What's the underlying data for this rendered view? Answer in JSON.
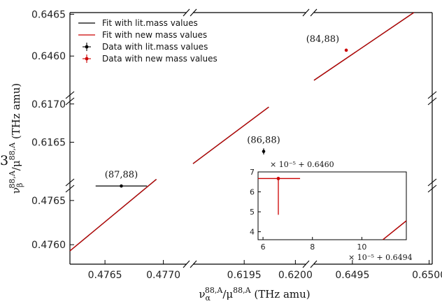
{
  "chart_data": {
    "type": "scatter",
    "xlabel": "ν_α^{88,A}/μ^{88,A} (THz amu)",
    "xlabel_parts": {
      "base": "ν",
      "sub": "α",
      "sup1": "88,A",
      "mid": "/μ",
      "sup2": "88,A",
      "unit": " (THz amu)"
    },
    "ylabel": "ν_β^{88,A}/μ^{88,A} (THz amu)",
    "ylabel_parts": {
      "base": "ν",
      "sub": "β",
      "sup1": "88,A",
      "mid": "/μ",
      "sup2": "88,A",
      "unit": " (THz amu)"
    },
    "stray_label": "3",
    "broken_axes": true,
    "x_segments": [
      {
        "range": [
          0.4762,
          0.4772
        ],
        "ticks": [
          "0.4765",
          "0.4770"
        ],
        "tick_values": [
          0.4765,
          0.477
        ]
      },
      {
        "range": [
          0.619,
          0.6201
        ],
        "ticks": [
          "0.6195",
          "0.6200"
        ],
        "tick_values": [
          0.6195,
          0.62
        ]
      },
      {
        "range": [
          0.64925,
          0.65002
        ],
        "ticks": [
          "0.6495",
          "0.6500"
        ],
        "tick_values": [
          0.6495,
          0.65
        ]
      }
    ],
    "y_segments": [
      {
        "range": [
          0.47593,
          0.47676
        ],
        "ticks": [
          "0.4760",
          "0.4765"
        ],
        "tick_values": [
          0.476,
          0.4765
        ]
      },
      {
        "range": [
          0.61603,
          0.61708
        ],
        "ticks": [
          "0.6165",
          "0.6170"
        ],
        "tick_values": [
          0.6165,
          0.617
        ]
      },
      {
        "range": [
          0.6455,
          0.64652
        ],
        "ticks": [
          "0.6460",
          "0.6465"
        ],
        "tick_values": [
          0.646,
          0.6465
        ]
      }
    ],
    "legend": {
      "placement": "upper-left",
      "entries": [
        {
          "label": "Fit with lit.mass values",
          "color": "#000000",
          "kind": "line"
        },
        {
          "label": "Fit with new mass values",
          "color": "#cc0000",
          "kind": "line"
        },
        {
          "label": "Data with lit.mass values",
          "color": "#000000",
          "kind": "point"
        },
        {
          "label": "Data with new mass values",
          "color": "#cc0000",
          "kind": "point"
        }
      ]
    },
    "series": [
      {
        "kind": "fit_line",
        "pieces": [
          {
            "x": [
              0.4762,
              0.47694
            ],
            "y": [
              0.47593,
              0.47674
            ]
          },
          {
            "x": [
              0.619,
              0.61974
            ],
            "y": [
              0.61622,
              0.61696
            ]
          },
          {
            "x": [
              0.64925,
              0.6499
            ],
            "y": [
              0.64571,
              0.64652
            ]
          }
        ]
      }
    ],
    "points": [
      {
        "label": "(87,88)",
        "x": 0.47664,
        "y": 0.476664,
        "xerr": 0.00022,
        "yerr": 3e-06
      },
      {
        "label": "(86,88)",
        "x": 0.61969,
        "y": 0.61638,
        "xerr": 4e-06,
        "yerr": 4e-05
      },
      {
        "label": "(84,88)",
        "x": 0.64946,
        "y": 0.64607,
        "xerr": 5e-06,
        "yerr": 6e-06
      }
    ],
    "inset": {
      "x_ticks": [
        "6",
        "8",
        "10"
      ],
      "x_tick_values": [
        6,
        8,
        10
      ],
      "y_ticks": [
        "4",
        "5",
        "6",
        "7"
      ],
      "y_tick_values": [
        4,
        5,
        6,
        7
      ],
      "xlim": [
        5.8,
        11.8
      ],
      "ylim": [
        3.6,
        7.0
      ],
      "x_offset": "× 10⁻⁵ + 0.6494",
      "y_offset": "× 10⁻⁵ + 0.6460",
      "point": {
        "x": 6.62,
        "y": 6.67,
        "x_lo": 5.8,
        "x_hi": 7.5,
        "y_lo": 4.85,
        "y_hi": 6.72
      },
      "fit_line": {
        "x": [
          10.85,
          11.8
        ],
        "y": [
          3.6,
          4.55
        ]
      }
    },
    "colors": {
      "lit": "#000000",
      "new": "#cc0000"
    }
  }
}
